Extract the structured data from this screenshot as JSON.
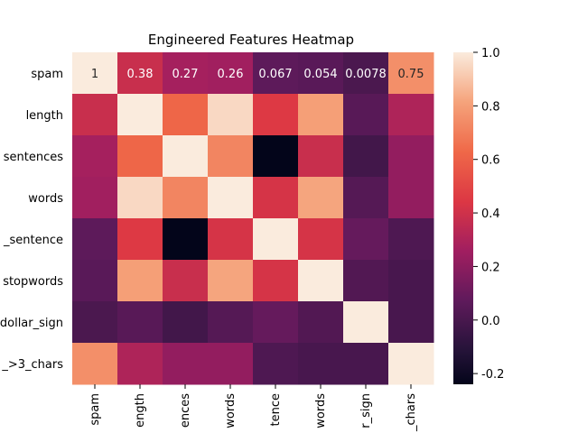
{
  "chart_data": {
    "type": "heatmap",
    "title": "Engineered Features Heatmap",
    "row_labels": [
      "spam",
      "length",
      "sentences",
      "words",
      "_sentence",
      "stopwords",
      "dollar_sign",
      "_>3_chars"
    ],
    "col_labels": [
      "spam",
      "ength",
      "ences",
      "words",
      "tence",
      "words",
      "r_sign",
      "_chars"
    ],
    "values": [
      [
        1,
        0.38,
        0.27,
        0.26,
        0.067,
        0.054,
        0.0078,
        0.75
      ],
      [
        0.38,
        1,
        0.62,
        0.95,
        0.45,
        0.8,
        0.05,
        0.3
      ],
      [
        0.27,
        0.62,
        1,
        0.72,
        -0.24,
        0.38,
        -0.02,
        0.22
      ],
      [
        0.26,
        0.95,
        0.72,
        1,
        0.42,
        0.82,
        0.04,
        0.22
      ],
      [
        0.067,
        0.45,
        -0.24,
        0.42,
        1,
        0.42,
        0.09,
        0.02
      ],
      [
        0.054,
        0.8,
        0.38,
        0.82,
        0.42,
        1,
        0.03,
        0.0
      ],
      [
        0.0078,
        0.05,
        -0.02,
        0.04,
        0.09,
        0.03,
        1,
        0.0
      ],
      [
        0.75,
        0.3,
        0.22,
        0.22,
        0.02,
        0.0,
        0.0,
        1
      ]
    ],
    "annotations": [
      [
        "1",
        "0.38",
        "0.27",
        "0.26",
        "0.067",
        "0.054",
        "0.0078",
        "0.75"
      ]
    ],
    "colorbar": {
      "min": -0.24,
      "max": 1.0,
      "ticks": [
        "-0.2",
        "0.0",
        "0.2",
        "0.4",
        "0.6",
        "0.8",
        "1.0"
      ],
      "tick_values": [
        -0.2,
        0.0,
        0.2,
        0.4,
        0.6,
        0.8,
        1.0
      ]
    }
  }
}
